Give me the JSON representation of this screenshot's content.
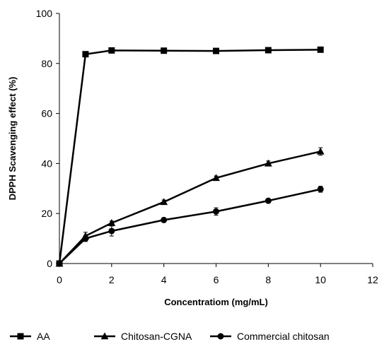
{
  "chart_data": {
    "type": "line",
    "xlabel": "Concentratiom (mg/mL)",
    "ylabel": "DPPH Scavenging effect (%)",
    "xlim": [
      0,
      12
    ],
    "ylim": [
      0,
      100
    ],
    "x_ticks": [
      "0",
      "2",
      "4",
      "6",
      "8",
      "10",
      "12"
    ],
    "y_ticks": [
      "0",
      "20",
      "40",
      "60",
      "80",
      "100"
    ],
    "grid": false,
    "legend_position": "bottom",
    "x": [
      0,
      1,
      2,
      4,
      6,
      8,
      10
    ],
    "series": [
      {
        "name": "AA",
        "marker": "square",
        "values": [
          0,
          83.7,
          85.2,
          85.1,
          85.0,
          85.3,
          85.5
        ],
        "errors": [
          0,
          1.0,
          0.8,
          0.8,
          0.8,
          0.8,
          0.8
        ]
      },
      {
        "name": "Chitosan-CGNA",
        "marker": "triangle",
        "values": [
          0,
          11.0,
          16.2,
          24.6,
          34.2,
          40.0,
          44.8
        ],
        "errors": [
          0,
          1.5,
          0.8,
          0.8,
          0.8,
          1.0,
          1.5
        ]
      },
      {
        "name": "Commercial chitosan",
        "marker": "circle",
        "values": [
          0,
          10.0,
          13.0,
          17.4,
          20.8,
          25.1,
          29.7
        ],
        "errors": [
          0,
          1.2,
          2.0,
          0.8,
          1.5,
          0.8,
          1.2
        ]
      }
    ],
    "colors": {
      "line": "#000000",
      "axis": "#000000"
    }
  }
}
